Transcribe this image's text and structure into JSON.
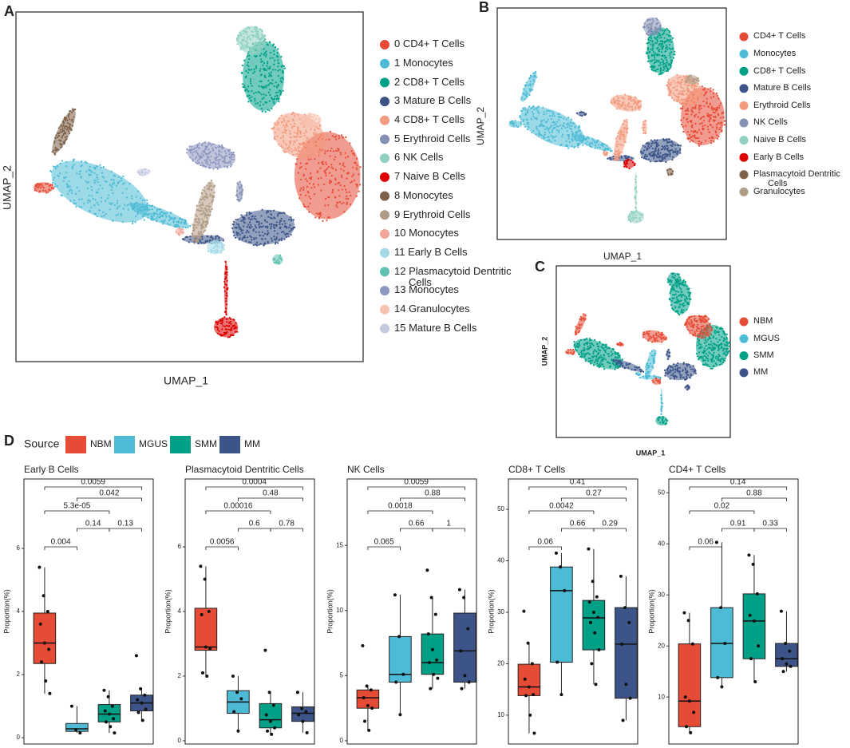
{
  "chart_data": [
    {
      "type": "umap",
      "panel": "A",
      "xlabel": "UMAP_1",
      "ylabel": "UMAP_2",
      "series": [
        {
          "name": "0 CD4+ T Cells",
          "color": "#e64b35"
        },
        {
          "name": "1 Monocytes",
          "color": "#4dbbd5"
        },
        {
          "name": "2 CD8+ T Cells",
          "color": "#00a087"
        },
        {
          "name": "3 Mature B Cells",
          "color": "#3c5488"
        },
        {
          "name": "4 CD8+ T Cells",
          "color": "#f39b7f"
        },
        {
          "name": "5 Erythroid Cells",
          "color": "#8491b4"
        },
        {
          "name": "6 NK Cells",
          "color": "#91d1c2"
        },
        {
          "name": "7 Naive B Cells",
          "color": "#dc0000"
        },
        {
          "name": "8 Monocytes",
          "color": "#7e6148"
        },
        {
          "name": "9 Erythroid Cells",
          "color": "#b09c85"
        },
        {
          "name": "10 Monocytes",
          "color": "#f1a69a"
        },
        {
          "name": "11 Early B Cells",
          "color": "#a3d9e8"
        },
        {
          "name": "12 Plasmacytoid Dentritic Cells",
          "color": "#5fc2b0"
        },
        {
          "name": "13 Monocytes",
          "color": "#8f98c0"
        },
        {
          "name": "14 Granulocytes",
          "color": "#f7c3b1"
        },
        {
          "name": "15 Mature B Cells",
          "color": "#c3c9df"
        }
      ]
    },
    {
      "type": "umap",
      "panel": "B",
      "xlabel": "UMAP_1",
      "ylabel": "UMAP_2",
      "series": [
        {
          "name": "CD4+ T Cells",
          "color": "#e64b35"
        },
        {
          "name": "Monocytes",
          "color": "#4dbbd5"
        },
        {
          "name": "CD8+ T Cells",
          "color": "#00a087"
        },
        {
          "name": "Mature B Cells",
          "color": "#3c5488"
        },
        {
          "name": "Erythroid Cells",
          "color": "#f39b7f"
        },
        {
          "name": "NK Cells",
          "color": "#8491b4"
        },
        {
          "name": "Naive B Cells",
          "color": "#91d1c2"
        },
        {
          "name": "Early B Cells",
          "color": "#dc0000"
        },
        {
          "name": "Plasmacytoid Dentritic Cells",
          "color": "#7e6148"
        },
        {
          "name": "Granulocytes",
          "color": "#b09c85"
        }
      ]
    },
    {
      "type": "umap",
      "panel": "C",
      "xlabel": "UMAP_1",
      "ylabel": "UMAP_2",
      "series": [
        {
          "name": "NBM",
          "color": "#e64b35"
        },
        {
          "name": "MGUS",
          "color": "#4dbbd5"
        },
        {
          "name": "SMM",
          "color": "#00a087"
        },
        {
          "name": "MM",
          "color": "#3c5488"
        }
      ]
    },
    {
      "type": "legend",
      "panel": "D",
      "title": "Source",
      "series": [
        {
          "name": "NBM",
          "color": "#e64b35"
        },
        {
          "name": "MGUS",
          "color": "#4dbbd5"
        },
        {
          "name": "SMM",
          "color": "#00a087"
        },
        {
          "name": "MM",
          "color": "#3c5488"
        }
      ]
    },
    {
      "type": "box",
      "title": "Early B Cells",
      "ylabel": "Proportion(%)",
      "ylim": [
        -0.2,
        8.2
      ],
      "yticks": [
        0,
        2,
        4,
        6
      ],
      "boxes": [
        {
          "color": "#e64b35",
          "whisker_low": 1.4,
          "q1": 2.35,
          "median": 3.0,
          "q3": 3.95,
          "whisker_high": 5.4,
          "points": [
            5.4,
            4.5,
            4.0,
            3.6,
            3.0,
            2.8,
            2.4,
            1.8,
            1.4
          ]
        },
        {
          "color": "#4dbbd5",
          "whisker_low": 0.15,
          "q1": 0.2,
          "median": 0.28,
          "q3": 0.45,
          "whisker_high": 1.0,
          "points": [
            1.0,
            0.25,
            0.15
          ]
        },
        {
          "color": "#00a087",
          "whisker_low": 0.15,
          "q1": 0.5,
          "median": 0.75,
          "q3": 1.05,
          "whisker_high": 1.5,
          "points": [
            1.5,
            1.3,
            1.0,
            0.85,
            0.75,
            0.6,
            0.5,
            0.35,
            0.15
          ]
        },
        {
          "color": "#3c5488",
          "whisker_low": 0.55,
          "q1": 0.85,
          "median": 1.1,
          "q3": 1.35,
          "whisker_high": 1.55,
          "points": [
            2.6,
            1.55,
            1.35,
            1.2,
            1.1,
            0.9,
            0.8,
            0.55
          ]
        }
      ],
      "p_values": [
        "0.004",
        "0.14",
        "0.13",
        "5.3e-05",
        "0.042",
        "0.0059"
      ]
    },
    {
      "type": "box",
      "title": "Plasmacytoid Dentritic Cells",
      "ylabel": "Proportion(%)",
      "ylim": [
        -0.1,
        8.1
      ],
      "yticks": [
        0,
        2,
        4,
        6
      ],
      "boxes": [
        {
          "color": "#e64b35",
          "whisker_low": 2.0,
          "q1": 2.8,
          "median": 2.9,
          "q3": 4.1,
          "whisker_high": 5.4,
          "points": [
            5.4,
            5.0,
            4.0,
            3.9,
            2.9,
            2.85,
            2.1,
            2.0
          ]
        },
        {
          "color": "#4dbbd5",
          "whisker_low": 0.3,
          "q1": 0.85,
          "median": 1.2,
          "q3": 1.55,
          "whisker_high": 2.0,
          "points": [
            2.0,
            1.5,
            1.3,
            0.9,
            0.3
          ]
        },
        {
          "color": "#00a087",
          "whisker_low": 0.2,
          "q1": 0.4,
          "median": 0.65,
          "q3": 1.15,
          "whisker_high": 1.5,
          "points": [
            2.8,
            1.5,
            1.1,
            0.8,
            0.6,
            0.4,
            0.3,
            0.2
          ]
        },
        {
          "color": "#3c5488",
          "whisker_low": 0.25,
          "q1": 0.6,
          "median": 0.85,
          "q3": 1.05,
          "whisker_high": 1.5,
          "points": [
            1.5,
            1.0,
            0.9,
            0.8,
            0.6,
            0.25
          ]
        }
      ],
      "p_values": [
        "0.0056",
        "0.6",
        "0.78",
        "0.00016",
        "0.48",
        "0.0004"
      ]
    },
    {
      "type": "box",
      "title": "NK Cells",
      "ylabel": "Proportion(%)",
      "ylim": [
        -0.25,
        20.1
      ],
      "yticks": [
        0,
        5,
        10,
        15
      ],
      "boxes": [
        {
          "color": "#e64b35",
          "whisker_low": 0.8,
          "q1": 2.5,
          "median": 3.3,
          "q3": 3.9,
          "whisker_high": 4.2,
          "points": [
            7.3,
            4.2,
            3.9,
            3.3,
            2.7,
            2.5,
            1.5,
            0.8
          ]
        },
        {
          "color": "#4dbbd5",
          "whisker_low": 2.0,
          "q1": 4.5,
          "median": 5.1,
          "q3": 8.0,
          "whisker_high": 11.2,
          "points": [
            11.2,
            8.0,
            5.1,
            4.5,
            2.0
          ]
        },
        {
          "color": "#00a087",
          "whisker_low": 4.0,
          "q1": 5.1,
          "median": 6.0,
          "q3": 8.2,
          "whisker_high": 11.0,
          "points": [
            13.1,
            11.0,
            9.7,
            8.2,
            7.0,
            6.2,
            6.0,
            5.1,
            4.8,
            4.0
          ]
        },
        {
          "color": "#3c5488",
          "whisker_low": 4.0,
          "q1": 4.5,
          "median": 6.9,
          "q3": 9.8,
          "whisker_high": 11.6,
          "points": [
            11.6,
            11.0,
            8.6,
            6.9,
            5.0,
            4.5,
            4.0
          ]
        }
      ],
      "p_values": [
        "0.065",
        "0.66",
        "1",
        "0.0018",
        "0.88",
        "0.0059"
      ]
    },
    {
      "type": "box",
      "title": "CD8+ T Cells",
      "ylabel": "Proportion(%)",
      "ylim": [
        4.4,
        55.9
      ],
      "yticks": [
        10,
        20,
        30,
        40,
        50
      ],
      "boxes": [
        {
          "color": "#e64b35",
          "whisker_low": 6.5,
          "q1": 13.8,
          "median": 15.5,
          "q3": 19.9,
          "whisker_high": 24,
          "points": [
            30.2,
            24,
            20,
            17,
            15.5,
            14,
            13.8,
            10,
            6.5
          ]
        },
        {
          "color": "#4dbbd5",
          "whisker_low": 14,
          "q1": 20.3,
          "median": 34.2,
          "q3": 38.8,
          "whisker_high": 41.5,
          "points": [
            41.5,
            38.8,
            34.2,
            20.3,
            14
          ]
        },
        {
          "color": "#00a087",
          "whisker_low": 16,
          "q1": 22.7,
          "median": 28.9,
          "q3": 32.3,
          "whisker_high": 42.3,
          "points": [
            42.3,
            36,
            33,
            32,
            30,
            29,
            28,
            26,
            22.7,
            20,
            16
          ]
        },
        {
          "color": "#3c5488",
          "whisker_low": 9,
          "q1": 13.3,
          "median": 23.8,
          "q3": 30.9,
          "whisker_high": 37,
          "points": [
            37,
            30.9,
            28,
            23.8,
            16,
            13.3,
            9
          ]
        }
      ],
      "p_values": [
        "0.06",
        "0.66",
        "0.29",
        "0.0042",
        "0.27",
        "0.41"
      ]
    },
    {
      "type": "box",
      "title": "CD4+ T Cells",
      "ylabel": "Proportion(%)",
      "ylim": [
        0.8,
        52.7
      ],
      "yticks": [
        10,
        20,
        30,
        40,
        50
      ],
      "boxes": [
        {
          "color": "#e64b35",
          "whisker_low": 3,
          "q1": 4.2,
          "median": 9.2,
          "q3": 20.4,
          "whisker_high": 26.5,
          "points": [
            26.5,
            25,
            20.4,
            10,
            9.2,
            7,
            4.2,
            3
          ]
        },
        {
          "color": "#4dbbd5",
          "whisker_low": 12,
          "q1": 13.8,
          "median": 20.5,
          "q3": 27.5,
          "whisker_high": 40.3,
          "points": [
            40.3,
            27.5,
            20.5,
            13.8,
            12
          ]
        },
        {
          "color": "#00a087",
          "whisker_low": 13,
          "q1": 17.5,
          "median": 24.9,
          "q3": 30.2,
          "whisker_high": 37.8,
          "points": [
            37.8,
            36,
            30.2,
            26,
            24.9,
            20,
            17.5,
            13
          ]
        },
        {
          "color": "#3c5488",
          "whisker_low": 15,
          "q1": 16,
          "median": 17.5,
          "q3": 20.5,
          "whisker_high": 26.8,
          "points": [
            26.8,
            20.5,
            19,
            17.5,
            16.5,
            16,
            15
          ]
        }
      ],
      "p_values": [
        "0.06",
        "0.91",
        "0.33",
        "0.02",
        "0.88",
        "0.14"
      ]
    }
  ]
}
